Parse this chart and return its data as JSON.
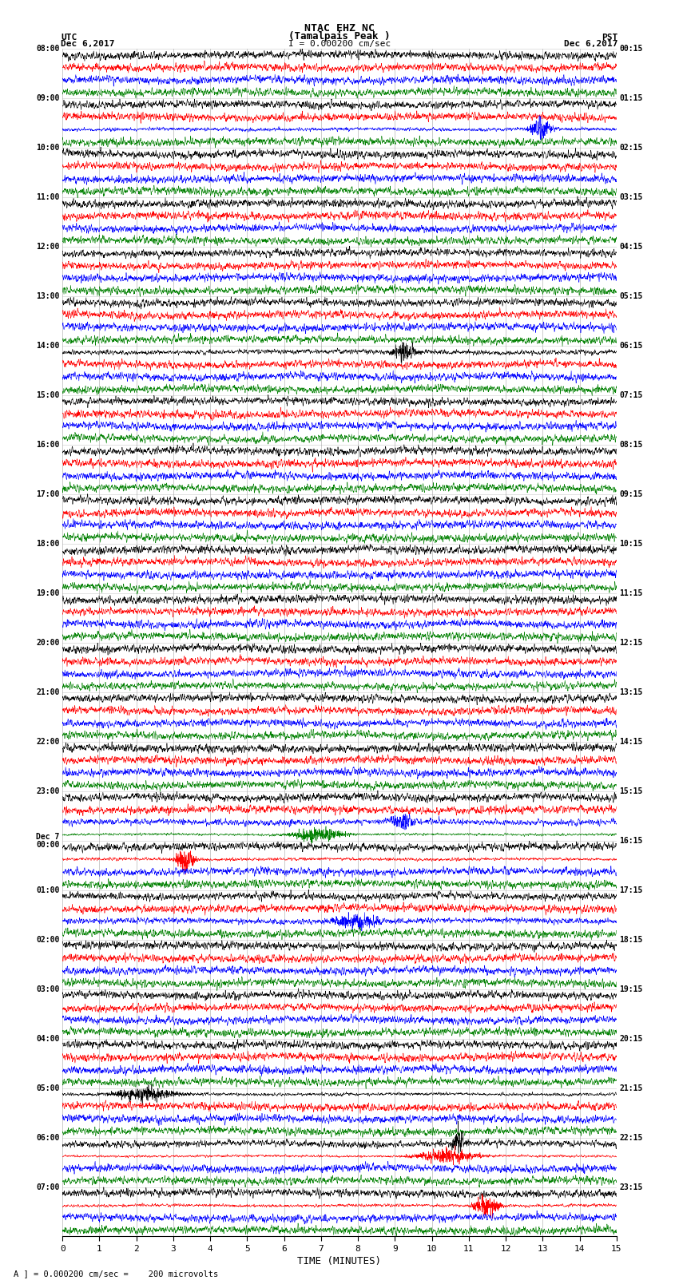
{
  "title_line1": "NTAC EHZ NC",
  "title_line2": "(Tamalpais Peak )",
  "scale_text": "I = 0.000200 cm/sec",
  "label_utc": "UTC",
  "label_utc_date": "Dec 6,2017",
  "label_pst": "PST",
  "label_pst_date": "Dec 6,2017",
  "xlabel": "TIME (MINUTES)",
  "footnote": "A ] = 0.000200 cm/sec =    200 microvolts",
  "utc_labels": [
    "08:00",
    "09:00",
    "10:00",
    "11:00",
    "12:00",
    "13:00",
    "14:00",
    "15:00",
    "16:00",
    "17:00",
    "18:00",
    "19:00",
    "20:00",
    "21:00",
    "22:00",
    "23:00",
    "Dec 7\n00:00",
    "01:00",
    "02:00",
    "03:00",
    "04:00",
    "05:00",
    "06:00",
    "07:00"
  ],
  "pst_labels": [
    "00:15",
    "01:15",
    "02:15",
    "03:15",
    "04:15",
    "05:15",
    "06:15",
    "07:15",
    "08:15",
    "09:15",
    "10:15",
    "11:15",
    "12:15",
    "13:15",
    "14:15",
    "15:15",
    "16:15",
    "17:15",
    "18:15",
    "19:15",
    "20:15",
    "21:15",
    "22:15",
    "23:15"
  ],
  "trace_colors": [
    "black",
    "red",
    "blue",
    "green"
  ],
  "n_hour_groups": 24,
  "traces_per_group": 4,
  "minutes": 15,
  "bg_color": "white",
  "grid_color": "#999999",
  "figsize": [
    8.5,
    16.13
  ],
  "dpi": 100,
  "noise_scales": [
    0.28,
    0.22,
    0.28,
    0.18
  ],
  "trace_amplitude": 0.38
}
